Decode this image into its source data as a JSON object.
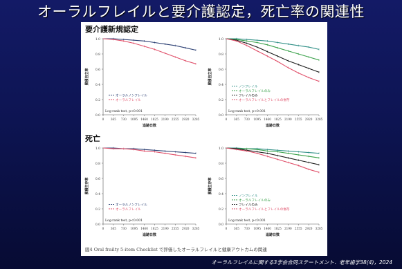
{
  "slide": {
    "title": "オーラルフレイルと要介護認定，死亡率の関連性",
    "footer": "オーラルフレイルに関する3学会合同ステートメント．老年歯学38(4)，2024"
  },
  "figure": {
    "section_care": "要介護新規認定",
    "section_death": "死亡",
    "caption": "図4  Oral frailty 5-item Checklist で評価したオーラルフレイルと健康アウトカムの関連"
  },
  "colors": {
    "navy": "#2b3f73",
    "pink": "#e0506a",
    "teal": "#2f8f86",
    "green": "#3aa14a",
    "gray": "#9aa0a6",
    "black": "#1a1a1a",
    "red": "#e0506a"
  },
  "chart_data": [
    {
      "type": "line",
      "panel": "care-left",
      "xlabel": "追跡日数",
      "ylabel": "累積自立率",
      "x": [
        0,
        365,
        730,
        1095,
        1460,
        1825,
        2190,
        2555,
        2920,
        3285
      ],
      "xlim": [
        0,
        3285
      ],
      "ylim": [
        0.0,
        1.0
      ],
      "yticks": [
        "0.0",
        "0.2",
        "0.4",
        "0.6",
        "0.8",
        "1.0"
      ],
      "annotation": "Log-rank test, p<0.001",
      "legend_position": "bottom-left",
      "series": [
        {
          "name": "オーラルノンフレイル",
          "color": "#2b3f73",
          "values": [
            1.0,
            1.0,
            0.99,
            0.98,
            0.97,
            0.95,
            0.93,
            0.91,
            0.88,
            0.85
          ]
        },
        {
          "name": "オーラルフレイル",
          "color": "#e0506a",
          "values": [
            1.0,
            0.99,
            0.97,
            0.94,
            0.9,
            0.86,
            0.81,
            0.76,
            0.71,
            0.67
          ]
        }
      ]
    },
    {
      "type": "line",
      "panel": "care-right",
      "xlabel": "追跡日数",
      "ylabel": "累積自立率",
      "x": [
        0,
        365,
        730,
        1095,
        1460,
        1825,
        2190,
        2555,
        2920,
        3285
      ],
      "xlim": [
        0,
        3285
      ],
      "ylim": [
        0.0,
        1.0
      ],
      "yticks": [
        "0.0",
        "0.2",
        "0.4",
        "0.6",
        "0.8",
        "1.0"
      ],
      "annotation": "Log-rank test, p<0.001",
      "legend_position": "bottom-left",
      "series": [
        {
          "name": "ノンフレイル",
          "color": "#2f8f86",
          "values": [
            1.0,
            1.0,
            0.99,
            0.98,
            0.97,
            0.95,
            0.93,
            0.91,
            0.89,
            0.86
          ]
        },
        {
          "name": "オーラルフレイルのみ",
          "color": "#3aa14a",
          "values": [
            1.0,
            0.99,
            0.97,
            0.95,
            0.92,
            0.88,
            0.84,
            0.8,
            0.76,
            0.72
          ]
        },
        {
          "name": "フレイルのみ",
          "color": "#1a1a1a",
          "values": [
            1.0,
            0.98,
            0.94,
            0.89,
            0.83,
            0.77,
            0.71,
            0.66,
            0.61,
            0.56
          ]
        },
        {
          "name": "オーラルフレイルとフレイルの併存",
          "color": "#e0506a",
          "values": [
            1.0,
            0.97,
            0.91,
            0.84,
            0.77,
            0.7,
            0.62,
            0.55,
            0.49,
            0.44
          ]
        }
      ]
    },
    {
      "type": "line",
      "panel": "death-left",
      "xlabel": "追跡日数",
      "ylabel": "累積生存率",
      "x": [
        0,
        365,
        730,
        1095,
        1460,
        1825,
        2190,
        2555,
        2920,
        3285
      ],
      "xlim": [
        0,
        3285
      ],
      "ylim": [
        0.0,
        1.0
      ],
      "yticks": [
        "0.0",
        "0.2",
        "0.4",
        "0.6",
        "0.8",
        "1.0"
      ],
      "annotation": "Log-rank test, p<0.001",
      "legend_position": "bottom-left",
      "series": [
        {
          "name": "オーラルノンフレイル",
          "color": "#2b3f73",
          "values": [
            1.0,
            1.0,
            0.99,
            0.99,
            0.98,
            0.97,
            0.96,
            0.95,
            0.94,
            0.93
          ]
        },
        {
          "name": "オーラルフレイル",
          "color": "#e0506a",
          "values": [
            1.0,
            0.99,
            0.99,
            0.98,
            0.96,
            0.95,
            0.93,
            0.91,
            0.89,
            0.87
          ]
        }
      ]
    },
    {
      "type": "line",
      "panel": "death-right",
      "xlabel": "追跡日数",
      "ylabel": "累積生存率",
      "x": [
        0,
        365,
        730,
        1095,
        1460,
        1825,
        2190,
        2555,
        2920,
        3285
      ],
      "xlim": [
        0,
        3285
      ],
      "ylim": [
        0.0,
        1.0
      ],
      "yticks": [
        "0.0",
        "0.2",
        "0.4",
        "0.6",
        "0.8",
        "1.0"
      ],
      "annotation": "Log-rank test, p<0.001",
      "legend_position": "bottom-left",
      "series": [
        {
          "name": "ノンフレイル",
          "color": "#2f8f86",
          "values": [
            1.0,
            1.0,
            0.99,
            0.99,
            0.98,
            0.97,
            0.96,
            0.95,
            0.94,
            0.93
          ]
        },
        {
          "name": "オーラルフレイルのみ",
          "color": "#3aa14a",
          "values": [
            1.0,
            0.99,
            0.99,
            0.98,
            0.96,
            0.95,
            0.93,
            0.91,
            0.89,
            0.87
          ]
        },
        {
          "name": "フレイルのみ",
          "color": "#1a1a1a",
          "values": [
            1.0,
            0.99,
            0.97,
            0.95,
            0.93,
            0.9,
            0.87,
            0.84,
            0.81,
            0.78
          ]
        },
        {
          "name": "オーラルフレイルとフレイルの併存",
          "color": "#e0506a",
          "values": [
            1.0,
            0.98,
            0.96,
            0.93,
            0.89,
            0.85,
            0.81,
            0.77,
            0.72,
            0.68
          ]
        }
      ]
    }
  ]
}
